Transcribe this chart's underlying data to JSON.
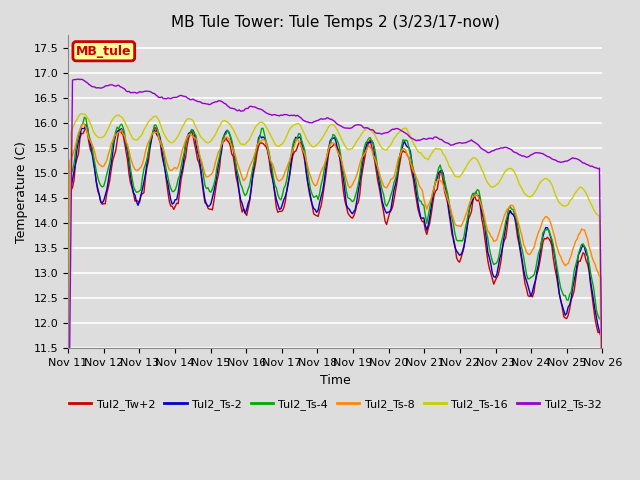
{
  "title": "MB Tule Tower: Tule Temps 2 (3/23/17-now)",
  "xlabel": "Time",
  "ylabel": "Temperature (C)",
  "ylim": [
    11.5,
    17.75
  ],
  "yticks": [
    11.5,
    12.0,
    12.5,
    13.0,
    13.5,
    14.0,
    14.5,
    15.0,
    15.5,
    16.0,
    16.5,
    17.0,
    17.5
  ],
  "xtick_labels": [
    "Nov 11",
    "Nov 12",
    "Nov 13",
    "Nov 14",
    "Nov 15",
    "Nov 16",
    "Nov 17",
    "Nov 18",
    "Nov 19",
    "Nov 20",
    "Nov 21",
    "Nov 22",
    "Nov 23",
    "Nov 24",
    "Nov 25",
    "Nov 26"
  ],
  "background_color": "#dddddd",
  "plot_bg_color": "#dddddd",
  "grid_color": "white",
  "legend_label": "MB_tule",
  "legend_bg": "#ffff99",
  "legend_border": "#cc0000",
  "line_labels": [
    "Tul2_Tw+2",
    "Tul2_Ts-2",
    "Tul2_Ts-4",
    "Tul2_Ts-8",
    "Tul2_Ts-16",
    "Tul2_Ts-32"
  ],
  "line_colors": [
    "#cc0000",
    "#0000cc",
    "#00aa00",
    "#ff8800",
    "#cccc00",
    "#9900cc"
  ],
  "title_fontsize": 11,
  "axis_fontsize": 9,
  "tick_fontsize": 8
}
